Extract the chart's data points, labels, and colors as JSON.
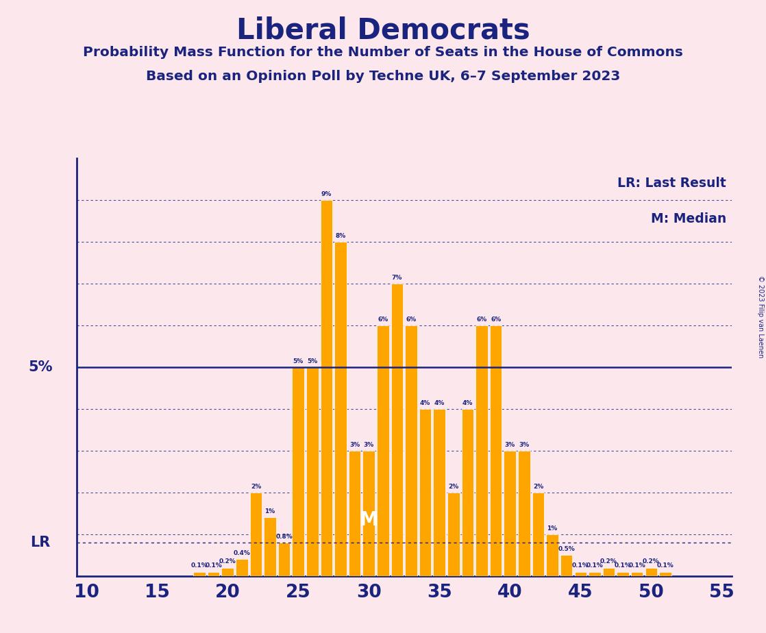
{
  "title": "Liberal Democrats",
  "subtitle1": "Probability Mass Function for the Number of Seats in the House of Commons",
  "subtitle2": "Based on an Opinion Poll by Techne UK, 6–7 September 2023",
  "copyright": "© 2023 Filip van Laenen",
  "background_color": "#fce8ec",
  "bar_color": "#FFA500",
  "axis_color": "#1a237e",
  "text_color": "#1a237e",
  "lr_line_value": 0.8,
  "median_seat": 30,
  "seats": [
    10,
    11,
    12,
    13,
    14,
    15,
    16,
    17,
    18,
    19,
    20,
    21,
    22,
    23,
    24,
    25,
    26,
    27,
    28,
    29,
    30,
    31,
    32,
    33,
    34,
    35,
    36,
    37,
    38,
    39,
    40,
    41,
    42,
    43,
    44,
    45,
    46,
    47,
    48,
    49,
    50,
    51,
    52,
    53,
    54,
    55
  ],
  "probabilities": [
    0,
    0,
    0,
    0,
    0,
    0,
    0,
    0,
    0.1,
    0.1,
    0.2,
    0.4,
    2.0,
    1.4,
    0.8,
    5.0,
    5.0,
    9.0,
    8.0,
    3.0,
    3.0,
    6.0,
    7.0,
    6.0,
    4.0,
    4.0,
    2.0,
    4.0,
    6.0,
    6.0,
    3.0,
    3.0,
    2.0,
    1.0,
    0.5,
    0.1,
    0.1,
    0.2,
    0.1,
    0.1,
    0.2,
    0.1,
    0,
    0,
    0,
    0
  ],
  "ylim_max": 10.0,
  "grid_lines_y": [
    1,
    2,
    3,
    4,
    5,
    6,
    7,
    8,
    9
  ]
}
